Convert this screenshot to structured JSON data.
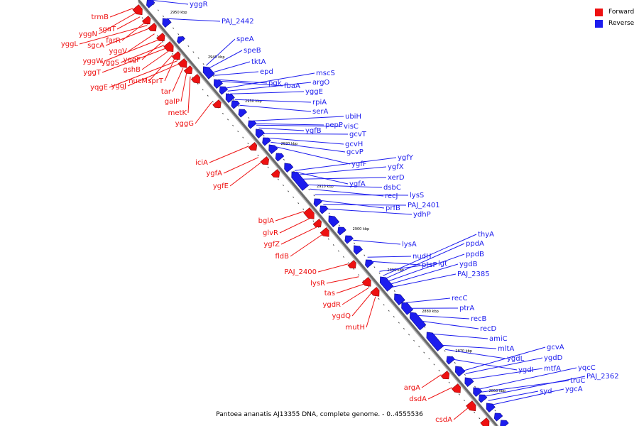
{
  "legend": {
    "forward": {
      "label": "Forward",
      "color": "#ee1111"
    },
    "reverse": {
      "label": "Reverse",
      "color": "#1c1cee"
    }
  },
  "caption": "Pantoea ananatis AJ13355 DNA, complete genome. - 0..4555536",
  "axis_ticks": [
    "2950 kbp",
    "2940 kbp",
    "2930 kbp",
    "2920 kbp",
    "2910 kbp",
    "2900 kbp",
    "2890 kbp",
    "2880 kbp",
    "2870 kbp",
    "2860 kbp"
  ],
  "reverse_genes": [
    "yggR",
    "PAJ_2442",
    "speA",
    "speB",
    "tktA",
    "epd",
    "pgk",
    "fbaA",
    "mscS",
    "argO",
    "yggE",
    "rpiA",
    "serA",
    "ubiH",
    "pepP",
    "visC",
    "ygfB",
    "gcvT",
    "gcvH",
    "gcvP",
    "ygfF",
    "ygfY",
    "ygfX",
    "xerD",
    "dsbC",
    "recJ",
    "lysS",
    "prfB",
    "ygfA",
    "PAJ_2401",
    "ydhP",
    "lysA",
    "nudH",
    "thyA",
    "ppdA",
    "ppdB",
    "ptsP",
    "lgt",
    "ygdB",
    "PAJ_2385",
    "recC",
    "ptrA",
    "recB",
    "recD",
    "amiC",
    "mltA",
    "ygdL",
    "ygdI",
    "gcvA",
    "ygdD",
    "mtfA",
    "yqcC",
    "truC",
    "PAJ_2362",
    "syd",
    "ygcA"
  ],
  "forward_genes": [
    "trmB",
    "yggN",
    "sgaT",
    "farR",
    "yggL",
    "sgcA",
    "yggV",
    "yggW",
    "yqgF",
    "yggS",
    "yggT",
    "gshB",
    "nucM",
    "sprT",
    "yqgE",
    "yggJ",
    "tar",
    "galP",
    "metK",
    "yggG",
    "iciA",
    "ygfA",
    "ygfE",
    "bglA",
    "glvR",
    "ygfZ",
    "fldB",
    "PAJ_2400",
    "lysR",
    "tas",
    "ygdR",
    "ygdQ",
    "mutH",
    "argA",
    "dsdA",
    "csdA"
  ]
}
